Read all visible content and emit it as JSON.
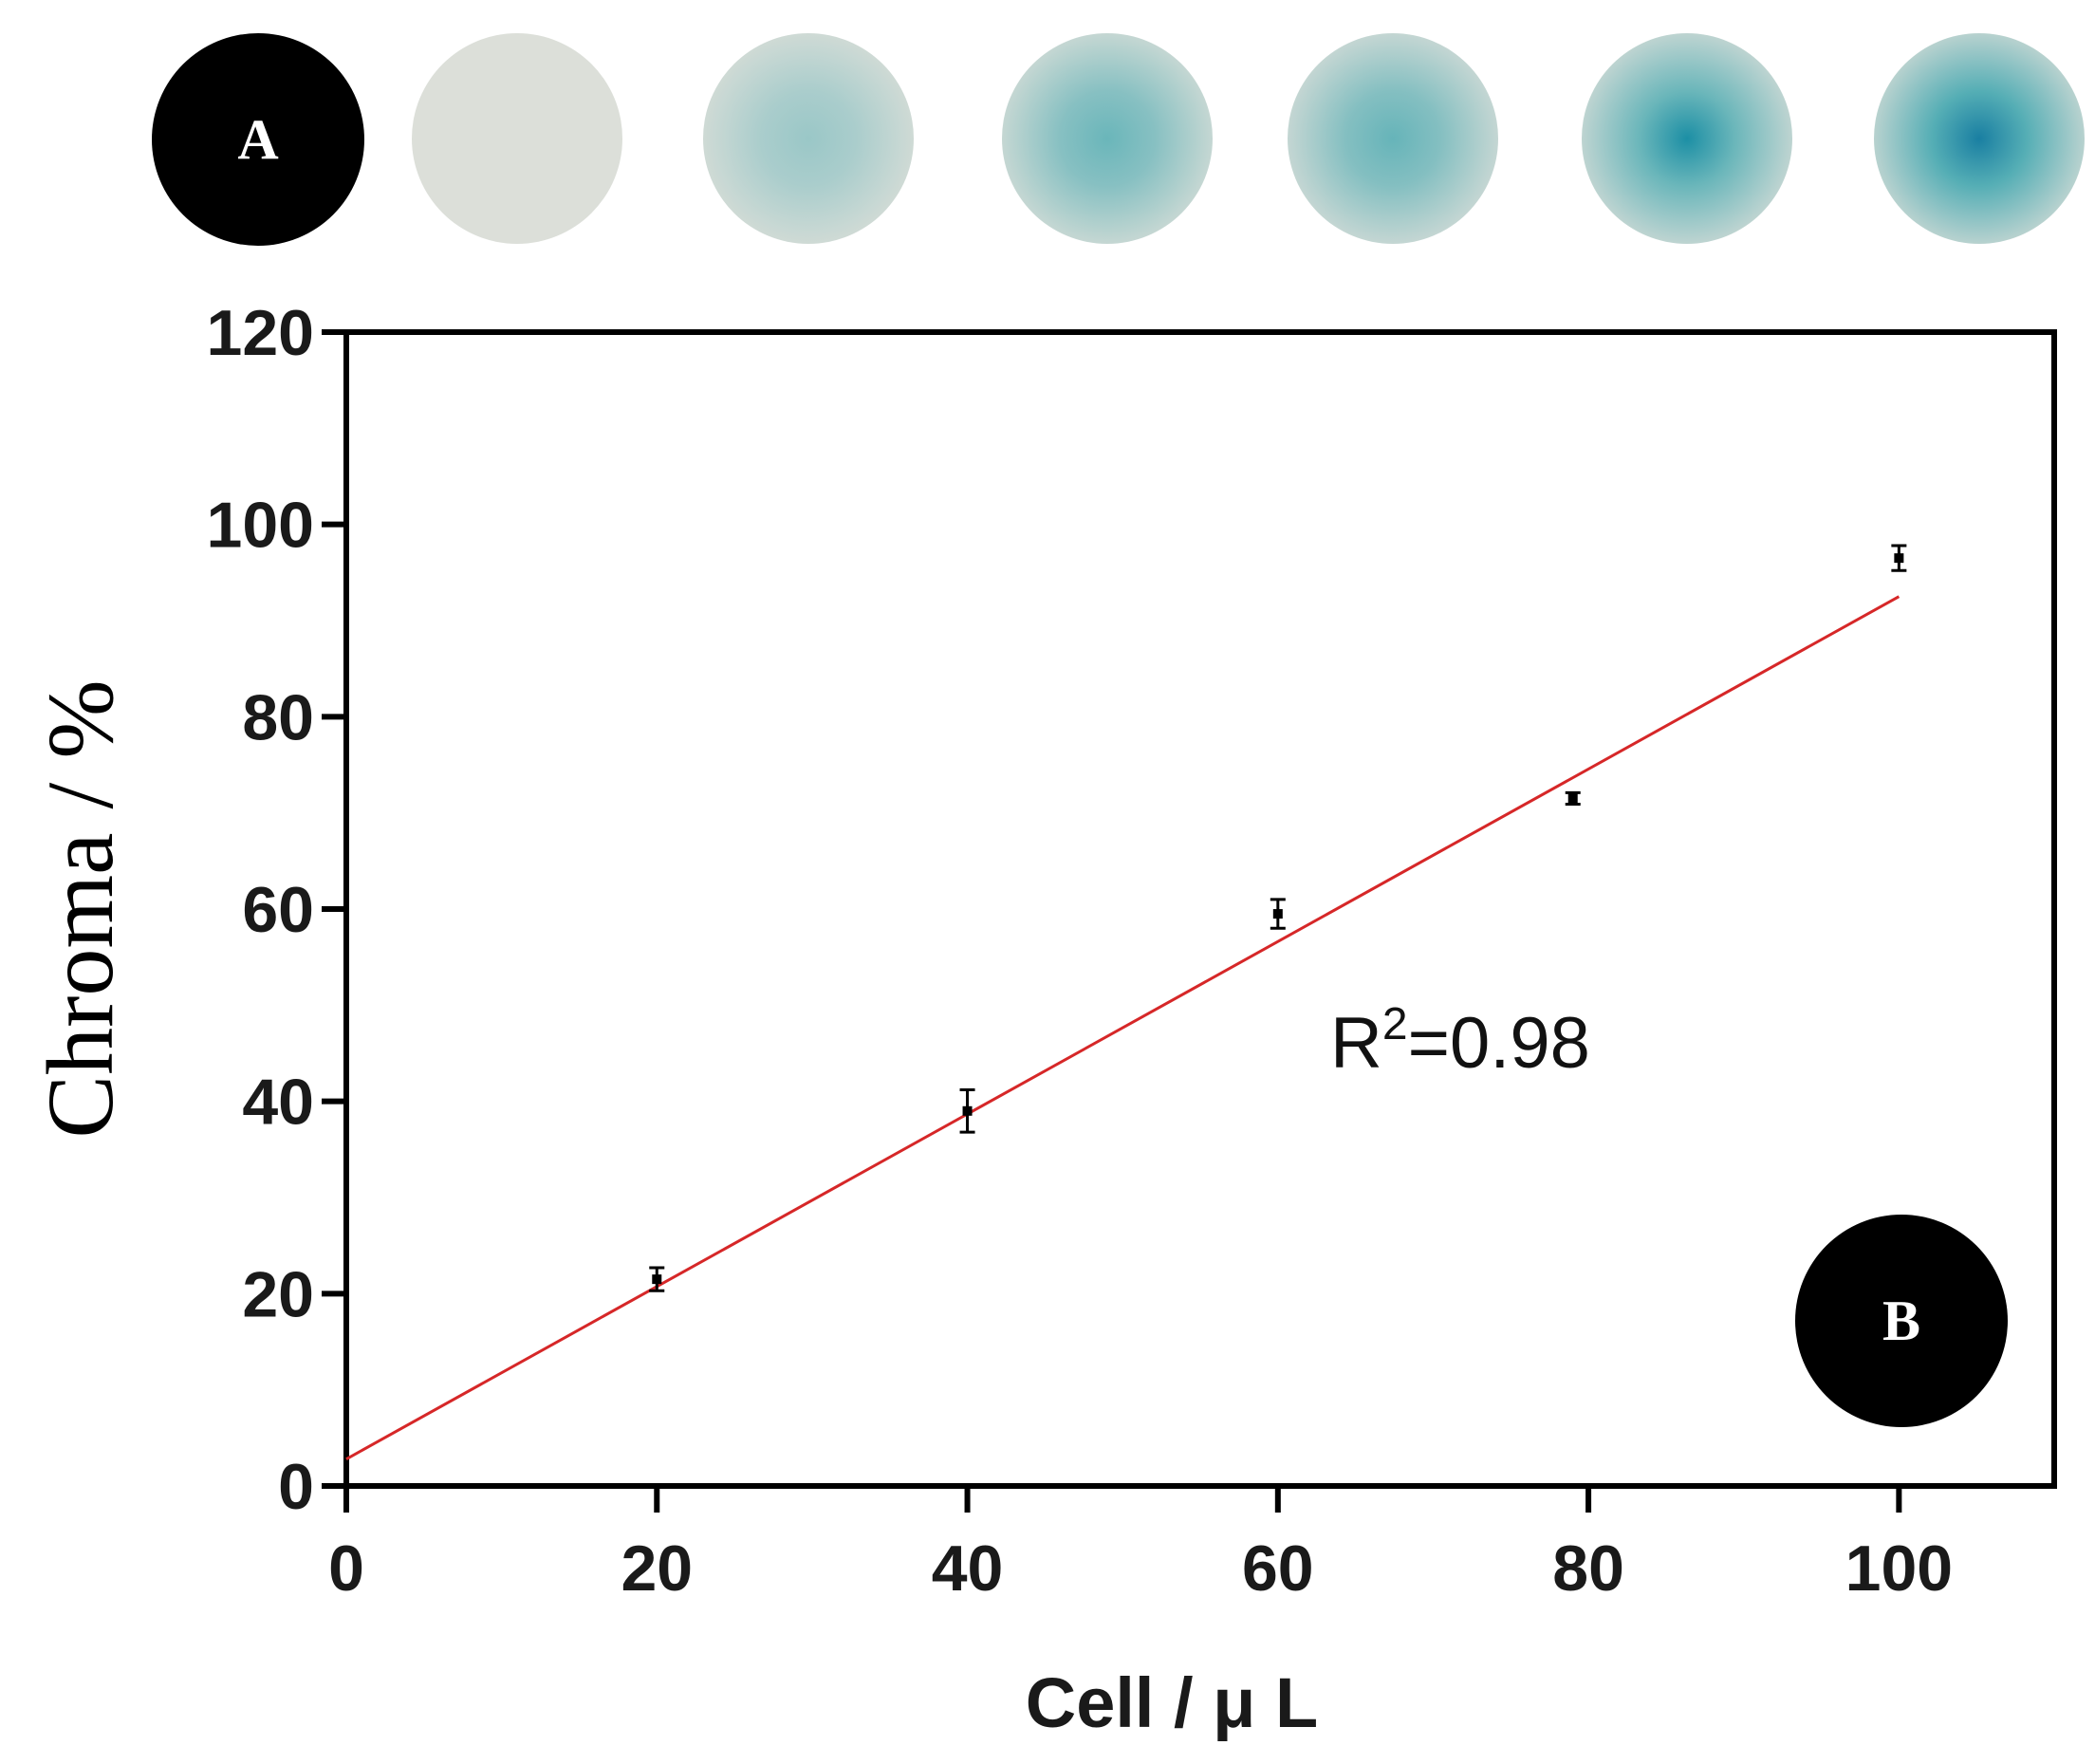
{
  "panels": {
    "a_label": "A",
    "b_label": "B"
  },
  "color_spots": {
    "description_count": 6,
    "base_color": "#dcdfd9",
    "stain_color": "#1e9aa6",
    "intensity": [
      0.0,
      0.35,
      0.6,
      0.62,
      0.8,
      0.95
    ]
  },
  "chart_data": {
    "type": "scatter",
    "title": "",
    "xlabel": "Cell / μ L",
    "ylabel": "Chroma / %",
    "xlim": [
      0,
      110
    ],
    "ylim": [
      0,
      120
    ],
    "xticks": [
      0,
      20,
      40,
      60,
      80,
      100
    ],
    "yticks": [
      0,
      20,
      40,
      60,
      80,
      100,
      120
    ],
    "xtick_labels": [
      "0",
      "20",
      "40",
      "60",
      "80",
      "100"
    ],
    "ytick_labels": [
      "0",
      "20",
      "40",
      "60",
      "80",
      "100",
      "120"
    ],
    "grid": false,
    "series": [
      {
        "x": [
          20,
          40,
          60,
          79,
          100
        ],
        "y": [
          21.5,
          39,
          59.5,
          71.5,
          96.5
        ],
        "yerr": [
          1.2,
          2.2,
          1.5,
          0.6,
          1.3
        ],
        "color": "#000000"
      }
    ],
    "fit_line": {
      "x": [
        0,
        100
      ],
      "y": [
        2.8,
        92.5
      ],
      "color": "#d62728"
    },
    "annotation": {
      "base": "R",
      "superscript": "2",
      "suffix": "=0.98"
    }
  }
}
